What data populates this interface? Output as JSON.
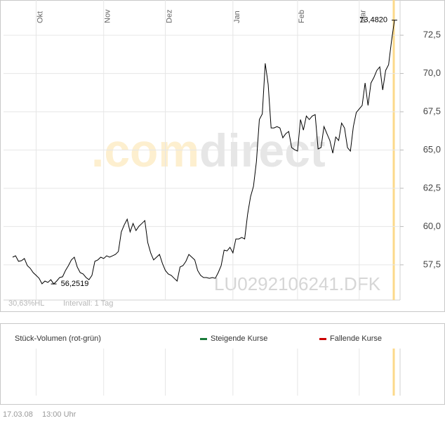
{
  "chart_data": {
    "type": "line",
    "categories": [
      null,
      null,
      null,
      null,
      null,
      null,
      null,
      null,
      "Okt",
      null,
      null,
      null,
      null,
      null,
      null,
      null,
      null,
      null,
      null,
      null,
      null,
      null,
      null,
      null,
      null,
      null,
      null,
      null,
      null,
      null,
      null,
      "Nov",
      null,
      null,
      null,
      null,
      null,
      null,
      null,
      null,
      null,
      null,
      null,
      null,
      null,
      null,
      null,
      null,
      null,
      null,
      null,
      null,
      "Dez",
      null,
      null,
      null,
      null,
      null,
      null,
      null,
      null,
      null,
      null,
      null,
      null,
      null,
      null,
      null,
      null,
      null,
      null,
      null,
      null,
      null,
      null,
      "Jan",
      null,
      null,
      null,
      null,
      null,
      null,
      null,
      null,
      null,
      null,
      null,
      null,
      null,
      null,
      null,
      null,
      null,
      null,
      null,
      null,
      null,
      "Feb",
      null,
      null,
      null,
      null,
      null,
      null,
      null,
      null,
      null,
      null,
      null,
      null,
      null,
      null,
      null,
      null,
      null,
      null,
      null,
      null,
      "Mar",
      null,
      null,
      null,
      null,
      null,
      null,
      null,
      null,
      null,
      null,
      null,
      null
    ],
    "values": [
      58.0,
      58.09,
      57.73,
      57.77,
      57.91,
      57.45,
      57.27,
      56.99,
      56.81,
      56.62,
      56.26,
      56.44,
      56.35,
      56.53,
      56.2519,
      56.44,
      56.67,
      56.72,
      57.13,
      57.45,
      57.82,
      58.0,
      57.36,
      56.99,
      56.9,
      56.67,
      56.53,
      56.81,
      57.73,
      57.82,
      58.0,
      57.91,
      58.09,
      58.0,
      58.09,
      58.18,
      58.37,
      59.65,
      60.11,
      60.48,
      59.65,
      60.2,
      59.74,
      60.02,
      60.2,
      60.39,
      58.96,
      58.28,
      57.82,
      58.0,
      58.18,
      57.59,
      57.13,
      56.9,
      56.81,
      56.62,
      56.44,
      57.36,
      57.45,
      57.73,
      58.18,
      58.0,
      57.82,
      57.13,
      56.81,
      56.67,
      56.67,
      56.62,
      56.67,
      56.62,
      56.99,
      57.45,
      58.46,
      58.41,
      58.64,
      58.28,
      59.19,
      59.19,
      59.29,
      59.19,
      60.8,
      61.95,
      62.63,
      64.24,
      66.99,
      67.36,
      70.66,
      69.29,
      66.44,
      66.44,
      66.53,
      66.44,
      65.8,
      66.07,
      66.21,
      65.16,
      65.02,
      64.93,
      66.99,
      66.3,
      67.22,
      66.99,
      67.22,
      67.31,
      65.07,
      65.16,
      66.53,
      66.07,
      65.62,
      64.79,
      65.85,
      65.62,
      66.76,
      66.44,
      65.16,
      64.93,
      66.53,
      67.45,
      67.68,
      67.91,
      69.38,
      67.91,
      69.38,
      69.74,
      70.2,
      70.43,
      68.92,
      70.2,
      70.57,
      72.13,
      73.482
    ],
    "value_labels": [
      null,
      null,
      null,
      null,
      null,
      null,
      null,
      null,
      null,
      null,
      null,
      null,
      null,
      null,
      "56,2519",
      null,
      null,
      null,
      null,
      null,
      null,
      null,
      null,
      null,
      null,
      null,
      null,
      null,
      null,
      null,
      null,
      null,
      null,
      null,
      null,
      null,
      null,
      null,
      null,
      null,
      null,
      null,
      null,
      null,
      null,
      null,
      null,
      null,
      null,
      null,
      null,
      null,
      null,
      null,
      null,
      null,
      null,
      null,
      null,
      null,
      null,
      null,
      null,
      null,
      null,
      null,
      null,
      null,
      null,
      null,
      null,
      null,
      null,
      null,
      null,
      null,
      null,
      null,
      null,
      null,
      null,
      null,
      null,
      null,
      null,
      null,
      null,
      null,
      null,
      null,
      null,
      null,
      null,
      null,
      null,
      null,
      null,
      null,
      null,
      null,
      null,
      null,
      null,
      null,
      null,
      null,
      null,
      null,
      null,
      null,
      null,
      null,
      null,
      null,
      null,
      null,
      null,
      null,
      null,
      null,
      null,
      null,
      null,
      null,
      null,
      null,
      null,
      null,
      null,
      null,
      "73,4820"
    ],
    "color": "#000000",
    "ylim": [
      55.2,
      74.8
    ],
    "yticks": [
      {
        "value": 57.5,
        "label": "57,5"
      },
      {
        "value": 60,
        "label": "60,0"
      },
      {
        "value": 62.5,
        "label": "62,5"
      },
      {
        "value": 65,
        "label": "65,0"
      },
      {
        "value": 67.5,
        "label": "67,5"
      },
      {
        "value": 70,
        "label": "70,0"
      },
      {
        "value": 72.5,
        "label": "72,5"
      }
    ],
    "grid": true,
    "annotations": [
      "30,63%HL",
      "Intervall: 1 Tag"
    ],
    "watermark": [
      ".com",
      "direct"
    ],
    "symbol": "LU0292106241.DFK",
    "volume_panel": {
      "title": "Stück-Volumen (rot-grün)",
      "legend": [
        {
          "name": "Steigende Kurse",
          "color": "#1a7a3a"
        },
        {
          "name": "Fallende Kurse",
          "color": "#cc0000"
        }
      ]
    },
    "footer": {
      "date": "17.03.08",
      "time": "13:00 Uhr"
    }
  }
}
